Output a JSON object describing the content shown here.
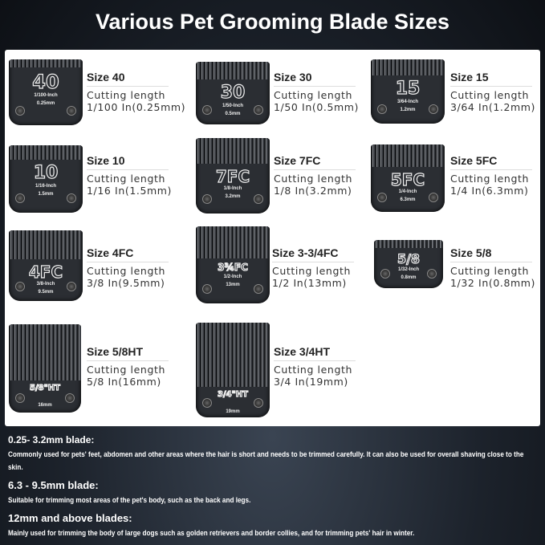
{
  "title": "Various Pet Grooming Blade Sizes",
  "blades": [
    {
      "size": "Size 40",
      "cl_label": "Cutting length",
      "cl": "1/100 In(0.25mm)",
      "mark": "40",
      "inch": "1/100-Inch",
      "mm": "0.25mm"
    },
    {
      "size": "Size 30",
      "cl_label": "Cutting length",
      "cl": "1/50 In(0.5mm)",
      "mark": "30",
      "inch": "1/50-Inch",
      "mm": "0.5mm"
    },
    {
      "size": "Size 15",
      "cl_label": "Cutting length",
      "cl": "3/64 In(1.2mm)",
      "mark": "15",
      "inch": "3/64-Inch",
      "mm": "1.2mm"
    },
    {
      "size": "Size 10",
      "cl_label": "Cutting length",
      "cl": "1/16 In(1.5mm)",
      "mark": "10",
      "inch": "1/16-Inch",
      "mm": "1.5mm"
    },
    {
      "size": "Size 7FC",
      "cl_label": "Cutting length",
      "cl": "1/8 In(3.2mm)",
      "mark": "7FC",
      "inch": "1/8-Inch",
      "mm": "3.2mm"
    },
    {
      "size": "Size 5FC",
      "cl_label": "Cutting length",
      "cl": "1/4 In(6.3mm)",
      "mark": "5FC",
      "inch": "1/4-Inch",
      "mm": "6.3mm"
    },
    {
      "size": "Size 4FC",
      "cl_label": "Cutting length",
      "cl": "3/8 In(9.5mm)",
      "mark": "4FC",
      "inch": "3/8-Inch",
      "mm": "9.5mm"
    },
    {
      "size": "Size 3-3/4FC",
      "cl_label": "Cutting length",
      "cl": "1/2 In(13mm)",
      "mark": "3¾FC",
      "inch": "1/2-Inch",
      "mm": "13mm"
    },
    {
      "size": "Size 5/8",
      "cl_label": "Cutting length",
      "cl": "1/32 In(0.8mm)",
      "mark": "5/8",
      "inch": "1/32-Inch",
      "mm": "0.8mm"
    },
    {
      "size": "Size 5/8HT",
      "cl_label": "Cutting length",
      "cl": "5/8 In(16mm)",
      "mark": "5/8\"HT",
      "inch": "",
      "mm": "16mm"
    },
    {
      "size": "Size 3/4HT",
      "cl_label": "Cutting length",
      "cl": "3/4 In(19mm)",
      "mark": "3/4\"HT",
      "inch": "",
      "mm": "19mm"
    }
  ],
  "notes": [
    {
      "heading": "0.25- 3.2mm blade:",
      "text": "Commonly used for pets' feet, abdomen and other areas where the hair is short and needs to be trimmed carefully. It can also be used for overall shaving close to the skin."
    },
    {
      "heading": "6.3 - 9.5mm blade:",
      "text": "Suitable for trimming most areas of the pet's body, such as the back and legs."
    },
    {
      "heading": "12mm and above blades:",
      "text": "Mainly used for trimming the body of large dogs such as golden retrievers and border collies, and for trimming pets' hair in winter."
    }
  ]
}
